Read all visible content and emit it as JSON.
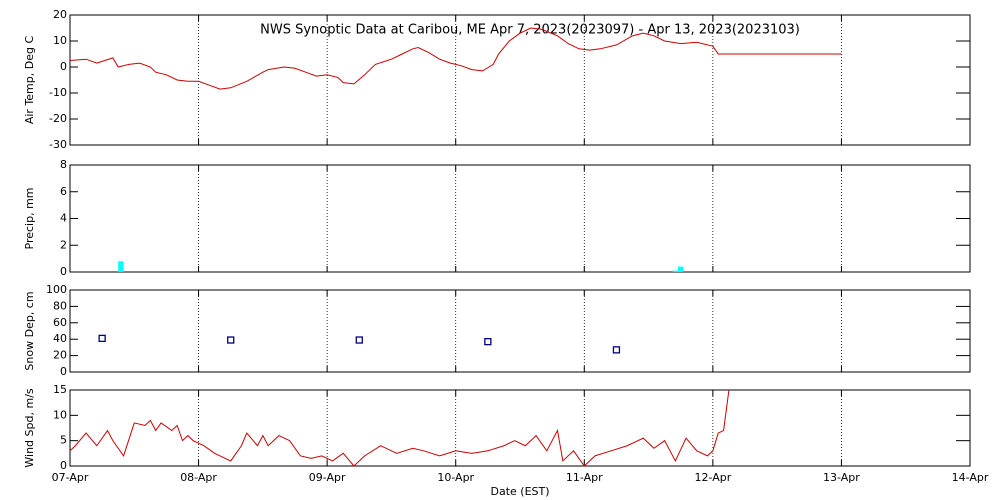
{
  "chart_data": [
    {
      "type": "line",
      "title": "NWS Synoptic Data at Caribou, ME   Apr  7, 2023(2023097) - Apr 13, 2023(2023103)",
      "ylabel": "Air Temp, Deg C",
      "color": "#cc0000",
      "x": [
        0,
        3,
        5,
        8,
        9,
        11,
        13,
        15,
        16,
        18,
        20,
        22,
        24,
        26,
        28,
        30,
        33,
        36,
        37,
        40,
        42,
        44,
        46,
        48,
        50,
        51,
        53,
        55,
        57,
        60,
        62,
        64,
        65,
        67,
        69,
        71,
        73,
        75,
        77,
        79,
        80,
        82,
        84,
        86,
        88,
        91,
        93,
        95,
        97,
        99,
        102,
        105,
        107,
        109,
        111,
        114,
        117,
        120,
        121,
        144
      ],
      "values": [
        2.5,
        3,
        1.5,
        3.5,
        0,
        1,
        1.5,
        0,
        -2,
        -3,
        -5,
        -5.5,
        -5.5,
        -7,
        -8.5,
        -8,
        -5.5,
        -2,
        -1,
        0,
        -0.5,
        -2,
        -3.5,
        -3,
        -4,
        -6,
        -6.5,
        -3,
        1,
        3,
        5,
        7,
        7.5,
        5.5,
        3,
        1.5,
        0.5,
        -1,
        -1.5,
        1,
        5,
        10,
        13,
        15,
        14.5,
        12,
        9,
        7,
        6.5,
        7,
        8.5,
        12,
        13,
        12,
        10,
        9,
        9.5,
        8,
        5,
        5
      ],
      "ylim": [
        -30,
        20
      ],
      "yticks": [
        -30,
        -20,
        -10,
        0,
        10,
        20
      ],
      "grid": true
    },
    {
      "type": "bar",
      "ylabel": "Precip, mm",
      "color": "#00ffff",
      "x": [
        9.5,
        113,
        114
      ],
      "values": [
        0.8,
        0.1,
        0.4
      ],
      "ylim": [
        0,
        8
      ],
      "yticks": [
        0,
        2,
        4,
        6,
        8
      ],
      "grid": true
    },
    {
      "type": "scatter",
      "ylabel": "Snow Dep, cm",
      "color": "#000080",
      "x": [
        6,
        30,
        54,
        78,
        102
      ],
      "values": [
        41,
        39,
        39,
        37,
        27
      ],
      "ylim": [
        0,
        100
      ],
      "yticks": [
        0,
        20,
        40,
        60,
        80,
        100
      ],
      "grid": true
    },
    {
      "type": "line",
      "ylabel": "Wind Spd, m/s",
      "xlabel": "Date (EST)",
      "color": "#cc0000",
      "x": [
        0,
        1,
        3,
        5,
        7,
        8,
        10,
        12,
        14,
        15,
        16,
        17,
        19,
        20,
        21,
        22,
        23,
        25,
        27,
        29,
        30,
        32,
        33,
        35,
        36,
        37,
        39,
        41,
        43,
        45,
        47,
        49,
        51,
        53,
        55,
        58,
        61,
        64,
        66,
        69,
        72,
        75,
        78,
        81,
        83,
        85,
        87,
        89,
        91,
        92,
        94,
        96,
        98,
        101,
        104,
        107,
        109,
        111,
        113,
        115,
        117,
        119,
        120,
        121,
        122,
        123
      ],
      "values": [
        3,
        4,
        6.5,
        4,
        7,
        5,
        2,
        8.5,
        8,
        9,
        7,
        8.5,
        7,
        8,
        5,
        6,
        5,
        4,
        2.5,
        1.5,
        1,
        4,
        6.5,
        4,
        6,
        4,
        6,
        5,
        2,
        1.5,
        2,
        1,
        2.5,
        0,
        2,
        4,
        2.5,
        3.5,
        3,
        2,
        3,
        2.5,
        3,
        4,
        5,
        4,
        6,
        3,
        7,
        1,
        3,
        0,
        2,
        3,
        4,
        5.5,
        3.5,
        5,
        1,
        5.5,
        3,
        2,
        3,
        6.5,
        7,
        15
      ],
      "ylim": [
        0,
        15
      ],
      "yticks": [
        0,
        5,
        10,
        15
      ],
      "grid": true,
      "xlim": [
        0,
        168
      ],
      "xticks": [
        {
          "value": 0,
          "label": "07-Apr"
        },
        {
          "value": 24,
          "label": "08-Apr"
        },
        {
          "value": 48,
          "label": "09-Apr"
        },
        {
          "value": 72,
          "label": "10-Apr"
        },
        {
          "value": 96,
          "label": "11-Apr"
        },
        {
          "value": 120,
          "label": "12-Apr"
        },
        {
          "value": 144,
          "label": "13-Apr"
        },
        {
          "value": 168,
          "label": "14-Apr"
        }
      ]
    }
  ]
}
